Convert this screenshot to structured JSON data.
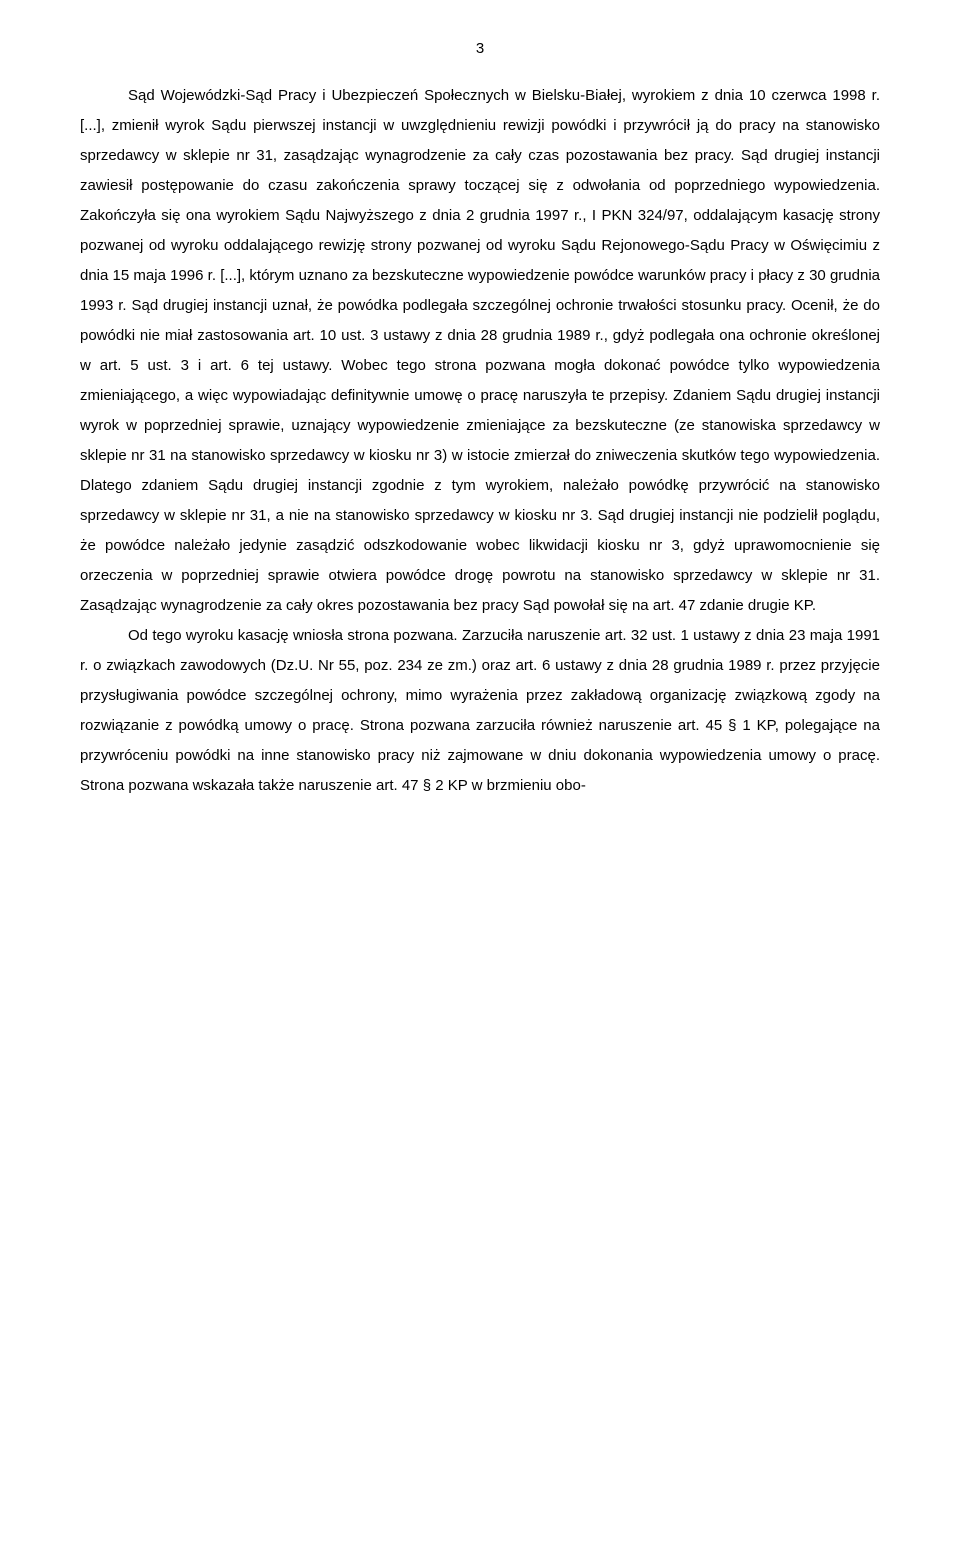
{
  "page_number": "3",
  "paragraph1": "Sąd Wojewódzki-Sąd Pracy i Ubezpieczeń Społecznych w Bielsku-Białej, wyrokiem z dnia 10 czerwca 1998 r. [...], zmienił wyrok Sądu pierwszej instancji w uwzględnieniu rewizji powódki i przywrócił ją do pracy na stanowisko sprzedawcy w sklepie nr 31, zasądzając wynagrodzenie za cały czas pozostawania bez pracy. Sąd drugiej instancji zawiesił postępowanie do czasu zakończenia sprawy toczącej się z odwołania od poprzedniego wypowiedzenia. Zakończyła się ona wyrokiem Sądu Najwyższego z dnia 2 grudnia 1997 r., I PKN 324/97, oddalającym kasację strony pozwanej od wyroku oddalającego rewizję strony pozwanej od wyroku Sądu Rejonowego-Sądu Pracy w Oświęcimiu z dnia 15 maja 1996 r. [...], którym uznano za bezskuteczne wypowiedzenie powódce warunków pracy i płacy z 30 grudnia 1993 r. Sąd drugiej instancji uznał, że powódka podlegała szczególnej ochronie trwałości stosunku pracy. Ocenił, że do powódki nie miał zastosowania art. 10 ust. 3 ustawy z dnia 28 grudnia 1989 r., gdyż podlegała ona ochronie określonej w art. 5 ust. 3 i art. 6 tej ustawy. Wobec tego strona pozwana mogła dokonać powódce tylko wypowiedzenia zmieniającego, a więc wypowiadając definitywnie umowę o pracę naruszyła te przepisy. Zdaniem Sądu drugiej instancji wyrok w poprzedniej sprawie, uznający wypowiedzenie zmieniające za bezskuteczne (ze stanowiska sprzedawcy w sklepie nr 31 na stanowisko sprzedawcy w kiosku nr 3) w istocie zmierzał do zniweczenia skutków tego wypowiedzenia. Dlatego zdaniem Sądu drugiej instancji zgodnie z tym wyrokiem, należało powódkę przywrócić na stanowisko sprzedawcy w sklepie nr 31, a nie na stanowisko sprzedawcy w kiosku nr 3. Sąd drugiej instancji nie podzielił poglądu, że powódce należało jedynie zasądzić odszkodowanie wobec likwidacji kiosku nr 3, gdyż uprawomocnienie się orzeczenia w poprzedniej sprawie otwiera powódce drogę powrotu na stanowisko sprzedawcy w sklepie nr 31. Zasądzając wynagrodzenie za cały okres pozostawania bez pracy Sąd powołał się na art. 47 zdanie drugie KP.",
  "paragraph2": "Od tego wyroku kasację wniosła strona pozwana. Zarzuciła naruszenie art. 32 ust. 1 ustawy z dnia 23 maja 1991 r. o związkach zawodowych (Dz.U. Nr 55, poz. 234 ze zm.) oraz art. 6 ustawy z dnia 28 grudnia 1989 r. przez przyjęcie przysługiwania powódce szczególnej ochrony, mimo wyrażenia przez zakładową organizację związkową zgody na rozwiązanie z powódką umowy o pracę. Strona pozwana zarzuciła również naruszenie art. 45 § 1 KP, polegające na przywróceniu powódki na inne stanowisko pracy niż zajmowane w dniu dokonania wypowiedzenia umowy o pracę. Strona pozwana wskazała także naruszenie art. 47 § 2 KP w brzmieniu obo-"
}
